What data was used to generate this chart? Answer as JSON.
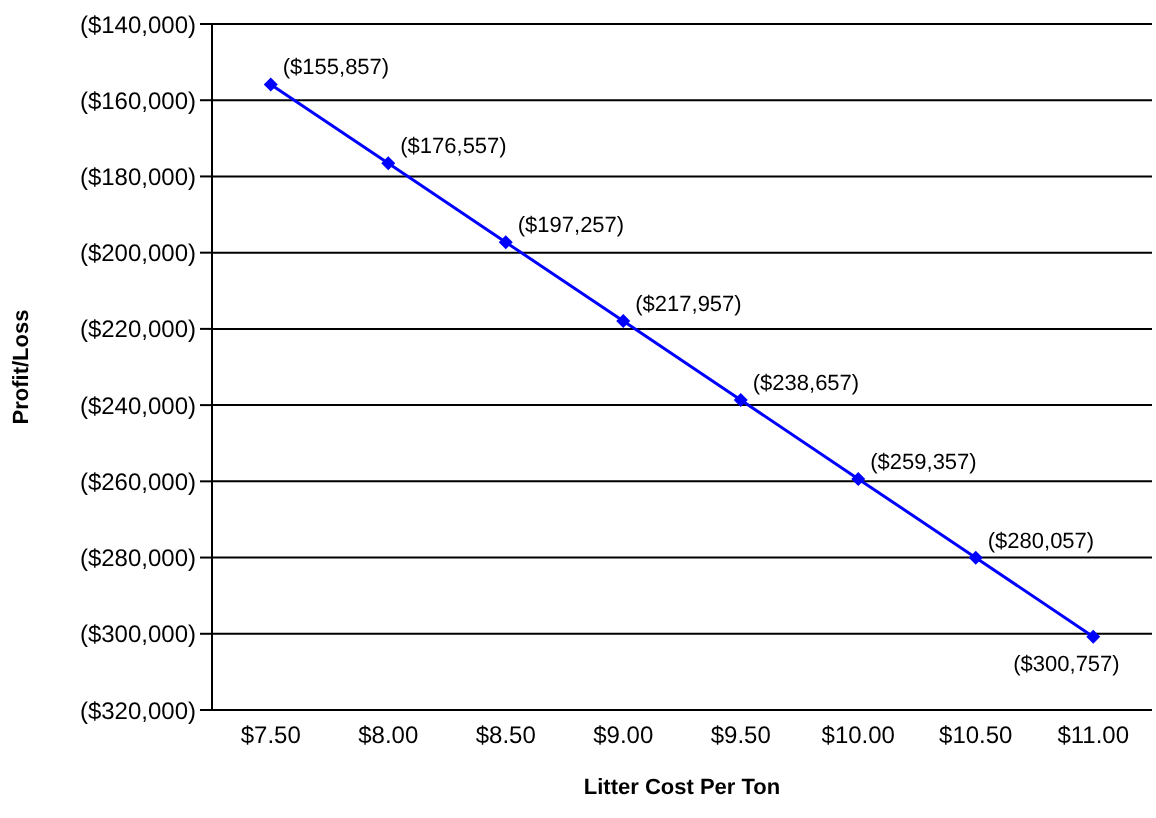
{
  "chart_data": {
    "type": "line",
    "xlabel": "Litter Cost Per Ton",
    "ylabel": "Profit/Loss",
    "categories": [
      "$7.50",
      "$8.00",
      "$8.50",
      "$9.00",
      "$9.50",
      "$10.00",
      "$10.50",
      "$11.00"
    ],
    "series": [
      {
        "color": "#0000ff",
        "values": [
          -155857,
          -176557,
          -197257,
          -217957,
          -238657,
          -259357,
          -280057,
          -300757
        ],
        "value_labels": [
          "($155,857)",
          "($176,557)",
          "($197,257)",
          "($217,957)",
          "($238,657)",
          "($259,357)",
          "($280,057)",
          "($300,757)"
        ]
      }
    ],
    "ylim": [
      -320000,
      -140000
    ],
    "yticks": [
      {
        "value": -140000,
        "label": "($140,000)"
      },
      {
        "value": -160000,
        "label": "($160,000)"
      },
      {
        "value": -180000,
        "label": "($180,000)"
      },
      {
        "value": -200000,
        "label": "($200,000)"
      },
      {
        "value": -220000,
        "label": "($220,000)"
      },
      {
        "value": -240000,
        "label": "($240,000)"
      },
      {
        "value": -260000,
        "label": "($260,000)"
      },
      {
        "value": -280000,
        "label": "($280,000)"
      },
      {
        "value": -300000,
        "label": "($300,000)"
      },
      {
        "value": -320000,
        "label": "($320,000)"
      }
    ],
    "grid": "y",
    "marker": "diamond",
    "line_style": "solid",
    "legend": false
  }
}
